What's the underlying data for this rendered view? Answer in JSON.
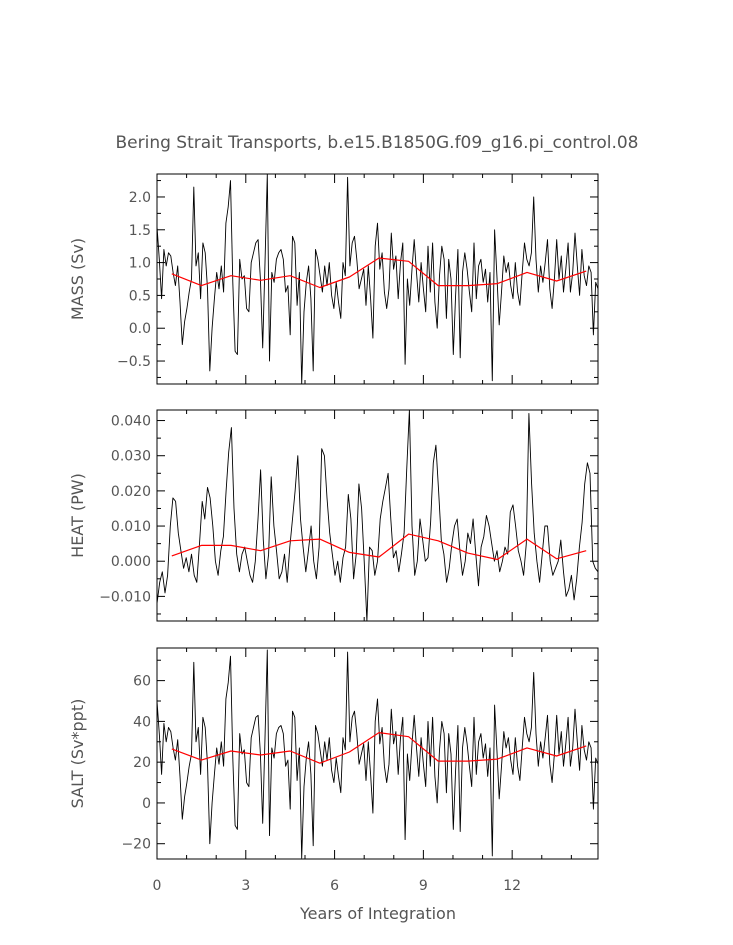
{
  "title": "Bering Strait Transports, b.e15.B1850G.f09_g16.pi_control.08",
  "xlabel": "Years of Integration",
  "colors": {
    "monthly": "#000000",
    "annual": "#ff0000",
    "text": "#555555"
  },
  "chart_data": {
    "type": "line",
    "x_range": [
      0,
      14.9
    ],
    "x_ticks": [
      "0",
      "3",
      "6",
      "9",
      "12"
    ],
    "x_tick_values": [
      0,
      3,
      6,
      9,
      12
    ],
    "annual_x": [
      0.5,
      1.5,
      2.5,
      3.5,
      4.5,
      5.5,
      6.5,
      7.5,
      8.5,
      9.5,
      10.5,
      11.5,
      12.5,
      13.5,
      14.5
    ],
    "panels": [
      {
        "key": "mass",
        "ylabel": "MASS (Sv)",
        "ylim": [
          -0.85,
          2.35
        ],
        "yticks": [
          2.0,
          1.5,
          1.0,
          0.5,
          0.0,
          -0.5
        ],
        "ytick_labels": [
          "2.0",
          "1.5",
          "1.0",
          "0.5",
          "0.0",
          "−0.5"
        ],
        "series": [
          {
            "name": "monthly",
            "color": "#000000",
            "values": [
              1.55,
              1.05,
              0.45,
              1.2,
              0.95,
              1.15,
              1.1,
              0.85,
              0.65,
              0.95,
              0.4,
              -0.25,
              0.1,
              0.3,
              0.55,
              0.75,
              2.15,
              0.95,
              1.15,
              0.45,
              1.3,
              1.15,
              0.6,
              -0.65,
              0.0,
              0.45,
              0.85,
              0.6,
              0.95,
              0.55,
              1.6,
              1.85,
              2.25,
              0.7,
              -0.35,
              -0.4,
              1.05,
              0.75,
              0.8,
              0.3,
              0.25,
              1.0,
              1.15,
              1.3,
              1.35,
              0.75,
              -0.3,
              1.0,
              2.35,
              -0.5,
              0.85,
              0.7,
              1.05,
              1.15,
              1.2,
              1.05,
              0.55,
              0.65,
              -0.1,
              1.4,
              1.3,
              0.35,
              0.85,
              -0.85,
              0.25,
              0.7,
              0.95,
              0.45,
              -0.65,
              1.2,
              1.05,
              0.8,
              0.55,
              0.95,
              0.65,
              1.0,
              0.5,
              0.3,
              0.7,
              0.4,
              0.15,
              1.0,
              0.8,
              2.3,
              0.95,
              1.3,
              1.4,
              1.05,
              0.6,
              0.75,
              0.9,
              0.35,
              0.95,
              0.45,
              -0.15,
              1.25,
              1.6,
              0.9,
              1.15,
              0.55,
              0.3,
              0.6,
              1.45,
              0.9,
              1.1,
              0.45,
              1.0,
              1.3,
              -0.55,
              0.75,
              0.35,
              0.9,
              1.35,
              0.85,
              0.4,
              1.0,
              0.6,
              0.25,
              1.25,
              0.55,
              1.3,
              0.4,
              0.0,
              0.8,
              1.25,
              1.05,
              0.15,
              1.05,
              0.75,
              -0.4,
              0.5,
              1.2,
              -0.45,
              0.85,
              1.15,
              0.9,
              0.55,
              0.25,
              1.3,
              0.45,
              0.95,
              1.05,
              0.7,
              0.9,
              0.4,
              0.85,
              -0.8,
              1.5,
              0.8,
              0.05,
              0.55,
              1.1,
              0.85,
              1.0,
              0.65,
              0.45,
              1.0,
              0.55,
              0.35,
              0.85,
              1.3,
              1.05,
              0.95,
              1.15,
              2.0,
              1.05,
              0.55,
              0.95,
              0.7,
              1.0,
              1.35,
              0.6,
              0.3,
              0.75,
              1.35,
              0.75,
              1.1,
              0.55,
              0.9,
              1.3,
              0.55,
              0.85,
              1.45,
              0.95,
              0.5,
              1.2,
              0.8,
              0.65,
              0.95,
              0.85,
              -0.1,
              0.7,
              0.6
            ]
          },
          {
            "name": "annual",
            "color": "#ff0000",
            "values": [
              0.83,
              0.65,
              0.8,
              0.73,
              0.8,
              0.62,
              0.78,
              1.07,
              1.02,
              0.65,
              0.65,
              0.68,
              0.85,
              0.72,
              0.87
            ]
          }
        ]
      },
      {
        "key": "heat",
        "ylabel": "HEAT (PW)",
        "ylim": [
          -0.017,
          0.043
        ],
        "yticks": [
          0.04,
          0.03,
          0.02,
          0.01,
          0.0,
          -0.01
        ],
        "ytick_labels": [
          "0.040",
          "0.030",
          "0.020",
          "0.010",
          "0.000",
          "−0.010"
        ],
        "series": [
          {
            "name": "monthly",
            "color": "#000000",
            "values": [
              -0.012,
              -0.006,
              -0.003,
              -0.009,
              -0.004,
              0.01,
              0.018,
              0.017,
              0.008,
              0.003,
              -0.002,
              0.001,
              -0.003,
              0.002,
              -0.004,
              -0.006,
              0.005,
              0.017,
              0.012,
              0.021,
              0.018,
              0.01,
              0.0,
              -0.004,
              0.003,
              0.007,
              0.02,
              0.031,
              0.038,
              0.015,
              0.002,
              -0.003,
              0.002,
              0.004,
              0.0,
              -0.004,
              -0.006,
              0.0,
              0.012,
              0.026,
              0.006,
              -0.005,
              0.002,
              0.024,
              0.01,
              0.003,
              -0.005,
              -0.003,
              0.002,
              -0.006,
              0.004,
              0.012,
              0.02,
              0.03,
              0.012,
              0.004,
              -0.003,
              0.003,
              0.01,
              0.0,
              -0.005,
              0.004,
              0.032,
              0.03,
              0.018,
              0.008,
              0.002,
              -0.004,
              0.0,
              -0.006,
              0.001,
              0.004,
              0.019,
              0.012,
              -0.005,
              0.002,
              0.022,
              0.015,
              0.0,
              -0.017,
              0.004,
              0.003,
              -0.004,
              0.0,
              0.012,
              0.017,
              0.021,
              0.025,
              0.012,
              0.001,
              0.003,
              -0.003,
              0.002,
              0.008,
              0.026,
              0.043,
              0.01,
              -0.004,
              0.0,
              0.012,
              0.006,
              0.0,
              0.001,
              0.011,
              0.028,
              0.033,
              0.02,
              0.006,
              0.002,
              -0.006,
              -0.002,
              0.005,
              0.01,
              0.012,
              0.003,
              -0.004,
              0.0,
              0.008,
              0.005,
              0.012,
              0.002,
              -0.007,
              0.004,
              0.007,
              0.013,
              0.01,
              0.005,
              0.0,
              0.003,
              -0.003,
              0.0,
              0.004,
              0.002,
              0.014,
              0.016,
              0.01,
              0.003,
              0.0,
              -0.004,
              0.005,
              0.042,
              0.022,
              0.008,
              0.0,
              -0.006,
              0.002,
              0.01,
              0.01,
              0.0,
              -0.004,
              -0.002,
              0.0,
              0.006,
              -0.003,
              -0.01,
              -0.008,
              -0.004,
              -0.011,
              -0.005,
              0.004,
              0.011,
              0.022,
              0.028,
              0.025,
              0.0,
              -0.002,
              -0.003
            ]
          },
          {
            "name": "annual",
            "color": "#ff0000",
            "values": [
              0.0015,
              0.0045,
              0.0045,
              0.003,
              0.0058,
              0.0063,
              0.0025,
              0.0012,
              0.0077,
              0.0058,
              0.0023,
              0.0005,
              0.0063,
              0.0007,
              0.003
            ]
          }
        ]
      },
      {
        "key": "salt",
        "ylabel": "SALT (Sv*ppt)",
        "ylim": [
          -27.5,
          76
        ],
        "yticks": [
          60,
          40,
          20,
          0,
          -20
        ],
        "ytick_labels": [
          "60",
          "40",
          "20",
          "0",
          "−20"
        ],
        "series": [
          {
            "name": "monthly",
            "color": "#000000",
            "values": [
              50,
              34,
              14,
              39,
              30,
              37,
              35,
              27,
              21,
              31,
              13,
              -8,
              3,
              10,
              18,
              24,
              69,
              30,
              37,
              14,
              42,
              37,
              19,
              -20,
              0,
              14,
              27,
              19,
              30,
              18,
              51,
              59,
              72,
              22,
              -11,
              -13,
              34,
              24,
              26,
              10,
              8,
              32,
              37,
              42,
              43,
              24,
              -10,
              32,
              75,
              -16,
              27,
              22,
              34,
              37,
              38,
              34,
              18,
              21,
              -3,
              45,
              42,
              11,
              27,
              -27,
              8,
              22,
              30,
              14,
              -21,
              38,
              34,
              26,
              18,
              30,
              21,
              32,
              16,
              10,
              22,
              13,
              5,
              32,
              26,
              74,
              30,
              42,
              45,
              34,
              19,
              24,
              29,
              11,
              30,
              14,
              -5,
              40,
              51,
              29,
              37,
              18,
              10,
              19,
              46,
              29,
              35,
              14,
              32,
              42,
              -18,
              24,
              11,
              29,
              43,
              27,
              13,
              32,
              19,
              8,
              40,
              18,
              42,
              13,
              0,
              26,
              40,
              34,
              5,
              34,
              24,
              -13,
              16,
              38,
              -14,
              27,
              37,
              29,
              18,
              8,
              42,
              14,
              30,
              34,
              22,
              29,
              13,
              27,
              -26,
              48,
              26,
              2,
              18,
              35,
              27,
              32,
              21,
              14,
              32,
              18,
              11,
              27,
              42,
              34,
              30,
              37,
              64,
              34,
              18,
              30,
              22,
              32,
              43,
              19,
              10,
              24,
              43,
              24,
              35,
              18,
              29,
              42,
              18,
              27,
              46,
              30,
              16,
              38,
              26,
              21,
              30,
              27,
              -3,
              22,
              19
            ]
          },
          {
            "name": "annual",
            "color": "#ff0000",
            "values": [
              26.5,
              21,
              25.5,
              23.5,
              25.5,
              19.5,
              25,
              34.5,
              32.5,
              20.5,
              20.5,
              21.5,
              27,
              23,
              28
            ]
          }
        ]
      }
    ]
  }
}
